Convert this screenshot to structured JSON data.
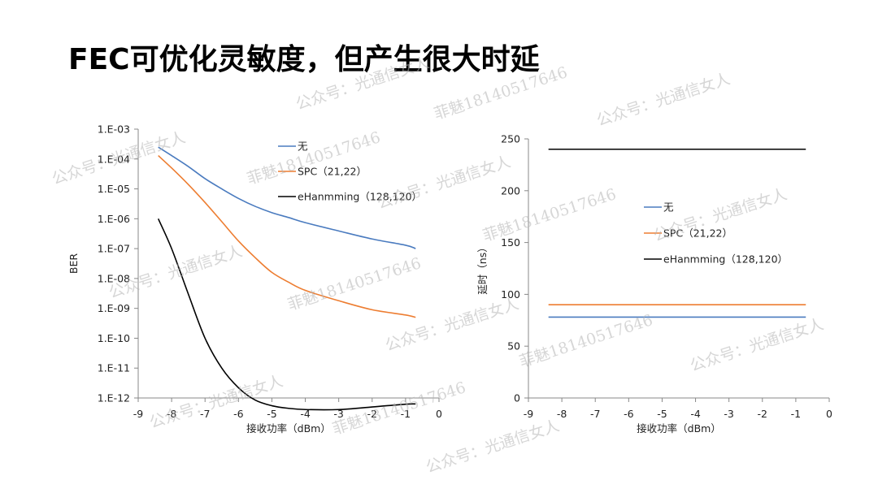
{
  "page": {
    "title": "FEC可优化灵敏度，但产生很大时延"
  },
  "watermarks": [
    "公众号：光通信女人",
    "菲魅18140517646"
  ],
  "colors": {
    "none": "#4a7bbf",
    "spc": "#ed7d31",
    "eham": "#000000"
  },
  "chart_data": [
    {
      "type": "line",
      "xlabel": "接收功率（dBm）",
      "ylabel": "BER",
      "xlim": [
        -9,
        0
      ],
      "x_ticks": [
        "-9",
        "-8",
        "-7",
        "-6",
        "-5",
        "-4",
        "-3",
        "-2",
        "-1",
        "0"
      ],
      "ylim_exp": [
        -12,
        -3
      ],
      "y_scale": "log",
      "y_ticks": [
        "1.E-03",
        "1.E-04",
        "1.E-05",
        "1.E-06",
        "1.E-07",
        "1.E-08",
        "1.E-09",
        "1.E-10",
        "1.E-11",
        "1.E-12"
      ],
      "legend_position": "top-center",
      "series": [
        {
          "name": "无",
          "color": "#4a7bbf",
          "x": [
            -8.4,
            -8.0,
            -7.5,
            -7.0,
            -6.5,
            -6.0,
            -5.5,
            -5.0,
            -4.5,
            -4.0,
            -3.0,
            -2.0,
            -1.0,
            -0.7
          ],
          "y": [
            0.00025,
            0.00013,
            5.6e-05,
            2.2e-05,
            1e-05,
            4.8e-06,
            2.6e-06,
            1.6e-06,
            1.1e-06,
            7.4e-07,
            3.9e-07,
            2.1e-07,
            1.3e-07,
            1e-07
          ]
        },
        {
          "name": "SPC（21,22）",
          "color": "#ed7d31",
          "x": [
            -8.4,
            -8.0,
            -7.5,
            -7.0,
            -6.5,
            -6.0,
            -5.5,
            -5.0,
            -4.5,
            -4.0,
            -3.0,
            -2.0,
            -1.0,
            -0.7
          ],
          "y": [
            0.00013,
            5e-05,
            1.4e-05,
            3.5e-06,
            8e-07,
            1.8e-07,
            5e-08,
            1.6e-08,
            7.5e-09,
            4e-09,
            1.8e-09,
            9e-10,
            6e-10,
            5e-10
          ]
        },
        {
          "name": "eHanmming（128,120）",
          "color": "#000000",
          "x": [
            -8.4,
            -8.0,
            -7.5,
            -7.0,
            -6.5,
            -6.0,
            -5.5,
            -5.0,
            -4.5,
            -4.0,
            -3.0,
            -2.0,
            -1.0,
            -0.7
          ],
          "y": [
            1e-06,
            1e-07,
            3e-09,
            1e-10,
            1e-11,
            2.2e-12,
            8.5e-13,
            5.5e-13,
            4.5e-13,
            4.1e-13,
            4.1e-13,
            5e-13,
            6.2e-13,
            6.3e-13
          ]
        }
      ],
      "legend": [
        "无",
        "SPC（21,22）",
        "eHanmming（128,120）"
      ]
    },
    {
      "type": "line",
      "xlabel": "接收功率（dBm）",
      "ylabel": "延时（ns）",
      "xlim": [
        -9,
        0
      ],
      "x_ticks": [
        "-9",
        "-8",
        "-7",
        "-6",
        "-5",
        "-4",
        "-3",
        "-2",
        "-1",
        "0"
      ],
      "ylim": [
        0,
        250
      ],
      "y_ticks": [
        "0",
        "50",
        "100",
        "150",
        "200",
        "250"
      ],
      "legend_position": "center",
      "series": [
        {
          "name": "无",
          "color": "#4a7bbf",
          "x": [
            -8.4,
            -0.7
          ],
          "y": [
            78,
            78
          ]
        },
        {
          "name": "SPC（21,22）",
          "color": "#ed7d31",
          "x": [
            -8.4,
            -0.7
          ],
          "y": [
            90,
            90
          ]
        },
        {
          "name": "eHanmming（128,120）",
          "color": "#000000",
          "x": [
            -8.4,
            -0.7
          ],
          "y": [
            240,
            240
          ]
        }
      ],
      "legend": [
        "无",
        "SPC（21,22）",
        "eHanmming（128,120）"
      ]
    }
  ]
}
